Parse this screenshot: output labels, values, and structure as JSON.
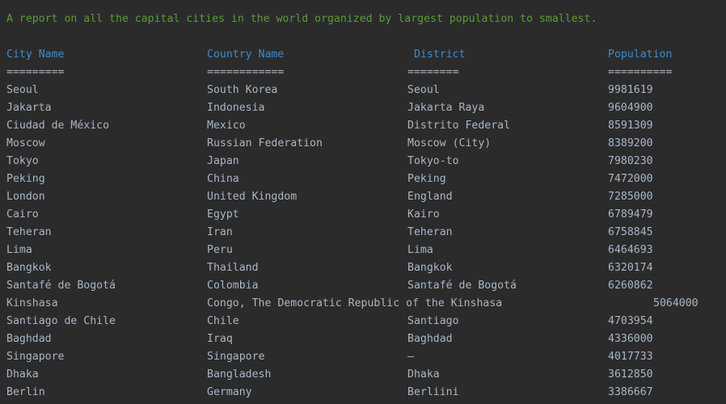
{
  "console": {
    "title": "A report on all the capital cities in the world organized by largest population to smallest.",
    "headers": {
      "city": "City Name",
      "country": "Country Name",
      "district": "District",
      "population": "Population"
    },
    "separators": {
      "city": "=========",
      "country": "============",
      "district": "========",
      "population": "=========="
    },
    "rows": [
      {
        "city": "Seoul",
        "country": "South Korea",
        "district": "Seoul",
        "population": "9981619"
      },
      {
        "city": "Jakarta",
        "country": "Indonesia",
        "district": "Jakarta Raya",
        "population": "9604900"
      },
      {
        "city": "Ciudad de México",
        "country": "Mexico",
        "district": "Distrito Federal",
        "population": "8591309"
      },
      {
        "city": "Moscow",
        "country": "Russian Federation",
        "district": "Moscow (City)",
        "population": "8389200"
      },
      {
        "city": "Tokyo",
        "country": "Japan",
        "district": "Tokyo-to",
        "population": "7980230"
      },
      {
        "city": "Peking",
        "country": "China",
        "district": "Peking",
        "population": "7472000"
      },
      {
        "city": "London",
        "country": "United Kingdom",
        "district": "England",
        "population": "7285000"
      },
      {
        "city": "Cairo",
        "country": "Egypt",
        "district": "Kairo",
        "population": "6789479"
      },
      {
        "city": "Teheran",
        "country": "Iran",
        "district": "Teheran",
        "population": "6758845"
      },
      {
        "city": "Lima",
        "country": "Peru",
        "district": "Lima",
        "population": "6464693"
      },
      {
        "city": "Bangkok",
        "country": "Thailand",
        "district": "Bangkok",
        "population": "6320174"
      },
      {
        "city": "Santafé de Bogotá",
        "country": "Colombia",
        "district": "Santafé de Bogotá",
        "population": "6260862"
      },
      {
        "city": "Kinshasa",
        "country": "Congo, The Democratic Republic of the Kinshasa",
        "district": "",
        "population": "5064000"
      },
      {
        "city": "Santiago de Chile",
        "country": "Chile",
        "district": "Santiago",
        "population": "4703954"
      },
      {
        "city": "Baghdad",
        "country": "Iraq",
        "district": "Baghdad",
        "population": "4336000"
      },
      {
        "city": "Singapore",
        "country": "Singapore",
        "district": "–",
        "population": "4017733"
      },
      {
        "city": "Dhaka",
        "country": "Bangladesh",
        "district": "Dhaka",
        "population": "3612850"
      },
      {
        "city": "Berlin",
        "country": "Germany",
        "district": "Berliini",
        "population": "3386667"
      }
    ]
  },
  "colors": {
    "background": "#2b2b2b",
    "title": "#5d9b3b",
    "header": "#3d8ccf",
    "text": "#a9b7c6"
  }
}
